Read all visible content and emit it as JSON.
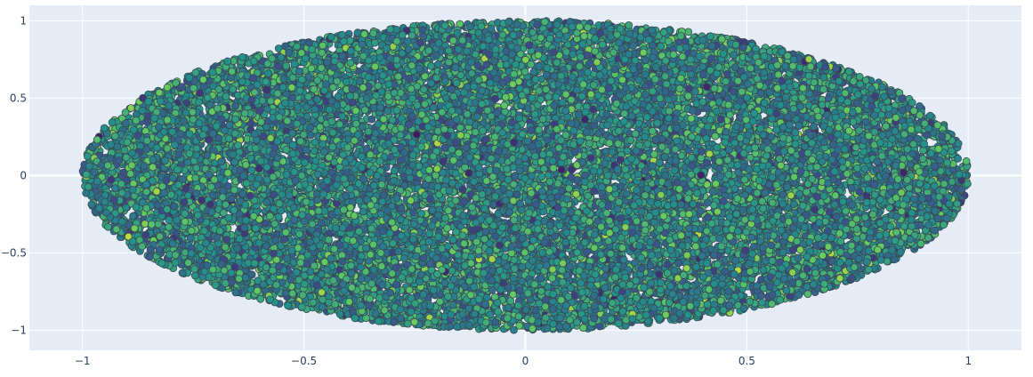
{
  "chart_data": {
    "type": "scatter",
    "title": "",
    "xlabel": "",
    "ylabel": "",
    "xlim": [
      -1.12,
      1.12
    ],
    "ylim": [
      -1.13,
      1.1
    ],
    "x_ticks": [
      {
        "value": -1,
        "label": "−1"
      },
      {
        "value": -0.5,
        "label": "−0.5"
      },
      {
        "value": 0,
        "label": "0"
      },
      {
        "value": 0.5,
        "label": "0.5"
      },
      {
        "value": 1,
        "label": "1"
      }
    ],
    "y_ticks": [
      {
        "value": -1,
        "label": "−1"
      },
      {
        "value": -0.5,
        "label": "−0.5"
      },
      {
        "value": 0,
        "label": "0"
      },
      {
        "value": 0.5,
        "label": "0.5"
      },
      {
        "value": 1,
        "label": "1"
      }
    ],
    "grid": true,
    "legend": "none",
    "colorscale": "viridis",
    "marker_outline": "#3a4a55",
    "background_color": "#e5ecf6",
    "series": [
      {
        "distribution": "uniform within the unit disk (x^2 + y^2 <= 1)",
        "approx_point_count": 20000,
        "x_range": [
          -1,
          1
        ],
        "y_range": [
          -1,
          1
        ],
        "color_values": "random"
      }
    ]
  }
}
